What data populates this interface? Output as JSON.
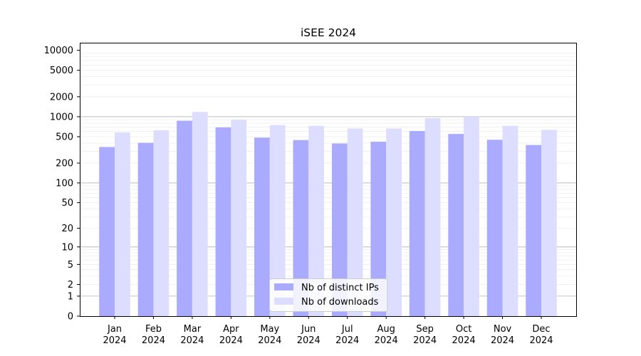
{
  "chart_data": {
    "type": "bar",
    "title": "iSEE 2024",
    "xlabel": "",
    "ylabel": "",
    "yscale": "log1p",
    "ylim": [
      0,
      13000
    ],
    "yticks": [
      0,
      1,
      2,
      5,
      10,
      20,
      50,
      100,
      200,
      500,
      1000,
      2000,
      5000,
      10000
    ],
    "ytick_labels": [
      "0",
      "1",
      "2",
      "5",
      "10",
      "20",
      "50",
      "100",
      "200",
      "500",
      "1000",
      "2000",
      "5000",
      "10000"
    ],
    "major_gridlines": [
      1,
      10,
      100,
      1000
    ],
    "grid": true,
    "legend_position": "bottom-center",
    "categories": [
      [
        "Jan",
        "2024"
      ],
      [
        "Feb",
        "2024"
      ],
      [
        "Mar",
        "2024"
      ],
      [
        "Apr",
        "2024"
      ],
      [
        "May",
        "2024"
      ],
      [
        "Jun",
        "2024"
      ],
      [
        "Jul",
        "2024"
      ],
      [
        "Aug",
        "2024"
      ],
      [
        "Sep",
        "2024"
      ],
      [
        "Oct",
        "2024"
      ],
      [
        "Nov",
        "2024"
      ],
      [
        "Dec",
        "2024"
      ]
    ],
    "series": [
      {
        "name": "Nb of distinct IPs",
        "color": "#aaaaff",
        "values": [
          350,
          405,
          870,
          690,
          485,
          445,
          395,
          420,
          610,
          550,
          450,
          375
        ]
      },
      {
        "name": "Nb of downloads",
        "color": "#ddddff",
        "values": [
          580,
          625,
          1180,
          900,
          750,
          730,
          665,
          665,
          950,
          1000,
          730,
          635
        ]
      }
    ]
  }
}
